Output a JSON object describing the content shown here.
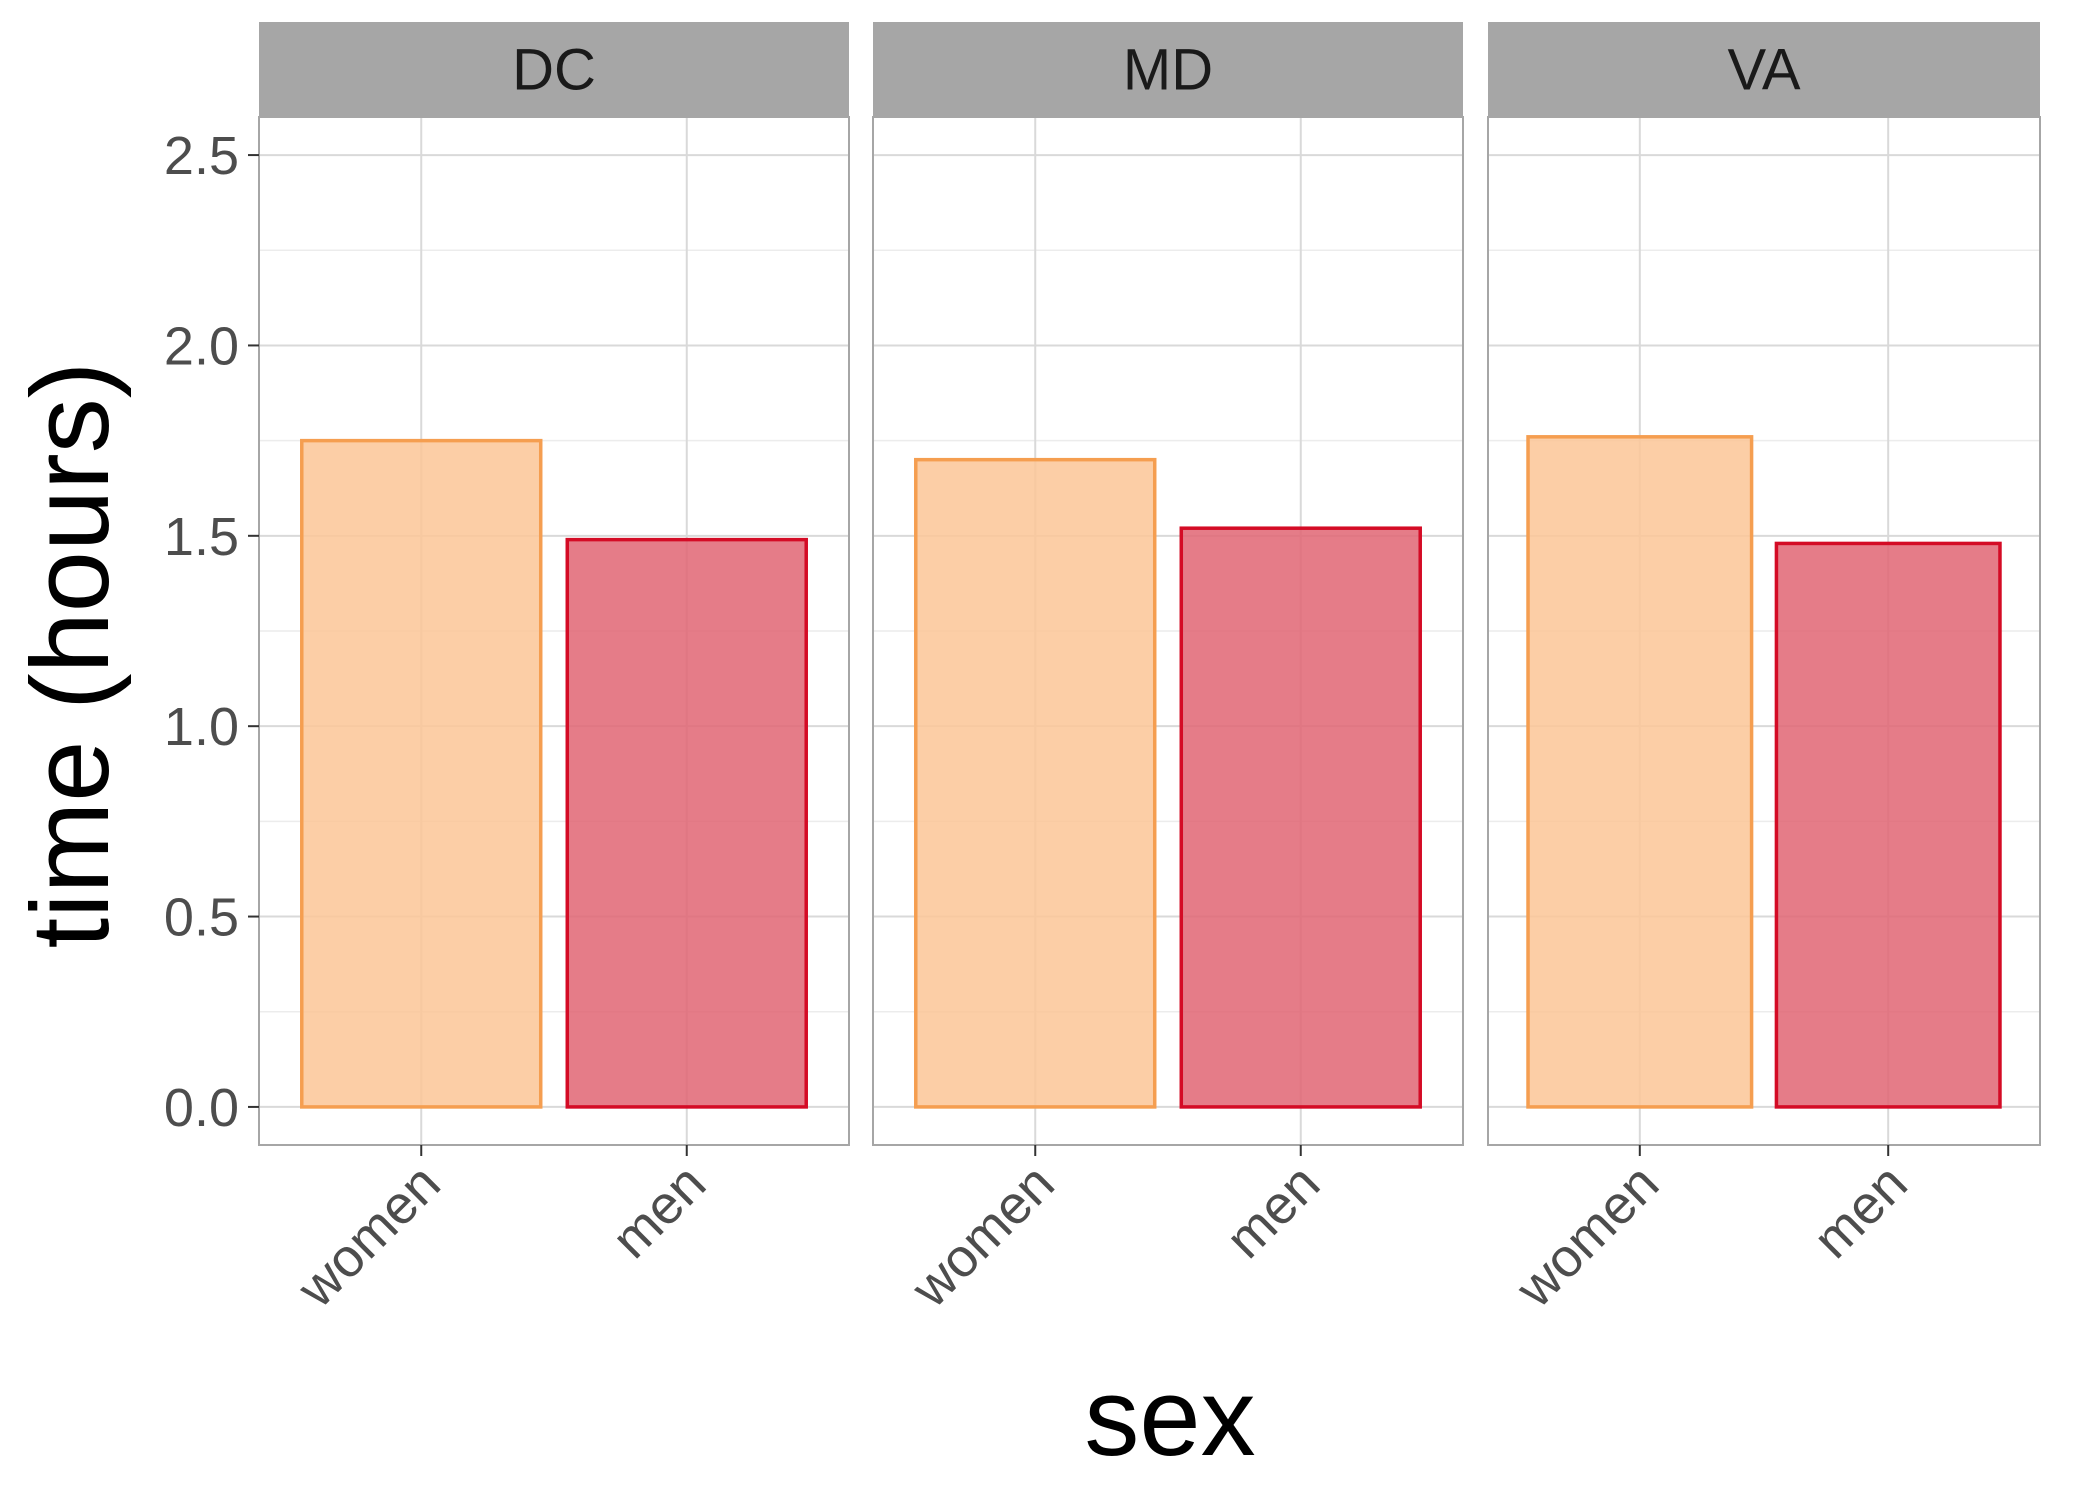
{
  "chart_data": {
    "type": "bar",
    "facet_variable": "state",
    "facets": [
      "DC",
      "MD",
      "VA"
    ],
    "categories": [
      "women",
      "men"
    ],
    "values": {
      "DC": [
        1.75,
        1.49
      ],
      "MD": [
        1.7,
        1.52
      ],
      "VA": [
        1.76,
        1.48
      ]
    },
    "xlabel": "sex",
    "ylabel": "time (hours)",
    "ylim": [
      -0.1,
      2.6
    ],
    "yticks": [
      0.0,
      0.5,
      1.0,
      1.5,
      2.0,
      2.5
    ],
    "ytick_labels": [
      "0.0",
      "0.5",
      "1.0",
      "1.5",
      "2.0",
      "2.5"
    ],
    "grid": true,
    "legend": "none",
    "colors": {
      "women_fill": "#fbc597",
      "women_stroke": "#f59e50",
      "men_fill": "#e06573",
      "men_stroke": "#d40b25",
      "strip_fill": "#a6a6a6",
      "grid_major": "#d9d9d9",
      "grid_minor": "#ececec",
      "panel_border": "#a6a6a6"
    }
  }
}
